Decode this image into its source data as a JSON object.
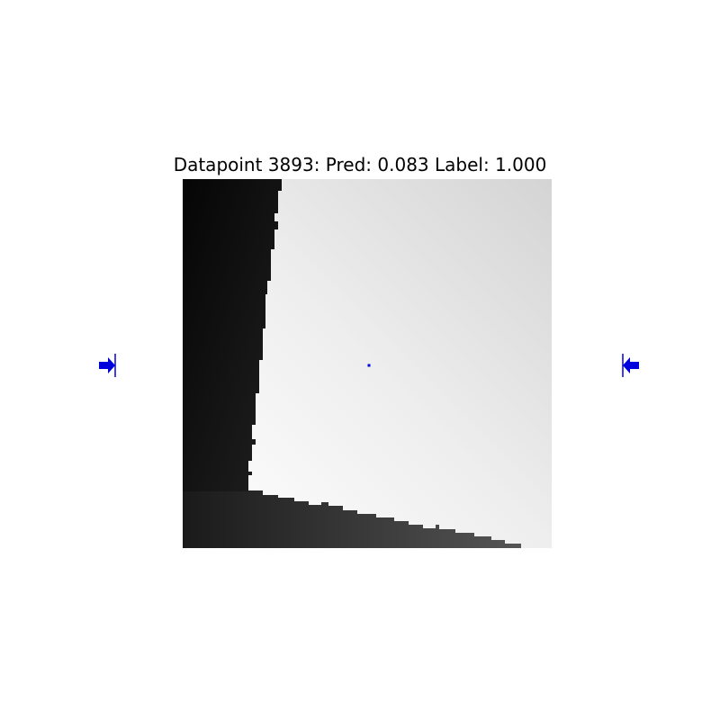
{
  "figure": {
    "title": "Datapoint 3893: Pred: 0.083 Label: 1.000",
    "marker_color": "#0000dd"
  }
}
